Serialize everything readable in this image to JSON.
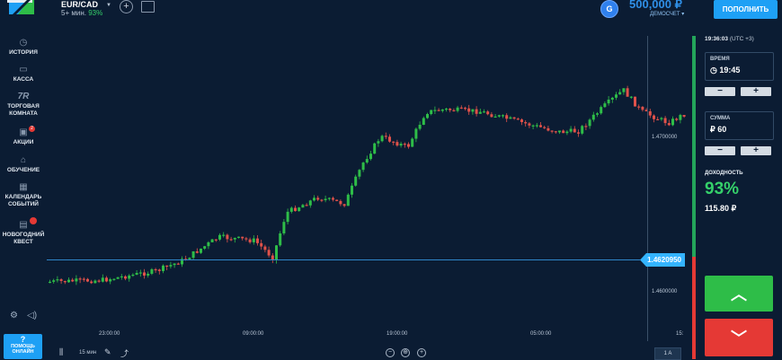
{
  "header": {
    "asset": {
      "name": "EUR/CAD",
      "sub": "5+ мин.",
      "payout": "93%"
    },
    "balance": {
      "icon_letter": "G",
      "amount": "500,000 ₽",
      "account_label": "ДЕМОСЧЕТ ▾"
    },
    "deposit_label": "ПОПОЛНИТЬ"
  },
  "sidebar": {
    "items": [
      {
        "label": "ИСТОРИЯ"
      },
      {
        "label": "КАССА"
      },
      {
        "label": "ТОРГОВАЯ КОМНАТА"
      },
      {
        "label": "АКЦИИ",
        "badge": "2"
      },
      {
        "label": "ОБУЧЕНИЕ"
      },
      {
        "label": "КАЛЕНДАРЬ СОБЫТИЙ"
      },
      {
        "label": "НОВОГОДНИЙ КВЕСТ"
      }
    ],
    "help": {
      "mark": "?",
      "label": "ПОМОЩЬ ОНЛАЙН"
    }
  },
  "chart": {
    "current_price": "1.4620950",
    "y_labels": [
      "1.4700000",
      "1.4600000"
    ],
    "x_labels": [
      "23:00:00",
      "09:00:00",
      "19:00:00",
      "05:00:00",
      "15:"
    ]
  },
  "bottom_bar": {
    "timeframe": "15 мин",
    "zoom_out": "−",
    "zoom_reset": "⊕",
    "zoom_in": "+",
    "range_button": "1 A"
  },
  "trade_panel": {
    "server_time": "19:36:03",
    "timezone": "(UTC +3)",
    "time": {
      "caption": "ВРЕМЯ",
      "value": "19:45"
    },
    "amount": {
      "caption": "СУММА",
      "value": "₽ 60"
    },
    "minus": "−",
    "plus": "+",
    "yield_caption": "ДОХОДНОСТЬ",
    "yield_percent": "93%",
    "yield_amount": "115.80 ₽"
  },
  "colors": {
    "background": "#0b1c33",
    "up_candle": "#2ebd48",
    "down_candle": "#e0514a",
    "accent": "#1ea0f5",
    "up_button": "#2ebd48",
    "down_button": "#e53935"
  }
}
